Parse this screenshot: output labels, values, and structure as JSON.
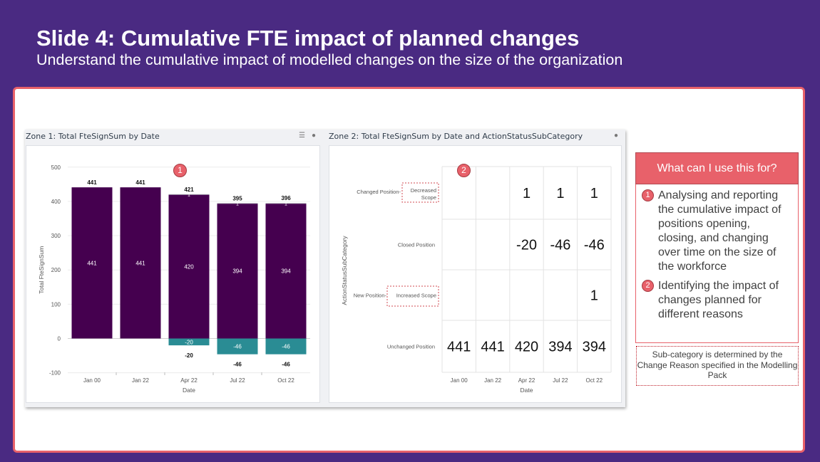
{
  "slide": {
    "title": "Slide 4: Cumulative FTE impact of planned changes",
    "subtitle": "Understand the cumulative impact of modelled changes on the size of the organization"
  },
  "zone1": {
    "title": "Zone 1: Total FteSignSum by Date",
    "badge": "1"
  },
  "zone2": {
    "title": "Zone 2: Total FteSignSum by Date and ActionStatusSubCategory",
    "badge": "2"
  },
  "info_panel": {
    "header": "What can I use this for?",
    "items": [
      {
        "badge": "1",
        "text": "Analysing and reporting the cumulative impact of positions opening, closing, and changing over time on the size of the workforce"
      },
      {
        "badge": "2",
        "text": "Identifying the impact of changes planned for different reasons"
      }
    ],
    "note": "Sub-category is determined by the Change Reason specified in the Modelling Pack"
  },
  "colors": {
    "background": "#4a2a82",
    "accent": "#e8616a",
    "bar_primary": "#45004f",
    "bar_secondary": "#2a8c94",
    "bar_cap": "#a7a3b0"
  },
  "chart_data": [
    {
      "type": "bar",
      "stacked": true,
      "categories": [
        "Jan 00",
        "Jan 22",
        "Apr 22",
        "Jul 22",
        "Oct 22"
      ],
      "series": [
        {
          "values": [
            441,
            441,
            420,
            394,
            394
          ],
          "color": "#45004f"
        },
        {
          "values": [
            0,
            0,
            1,
            1,
            1
          ],
          "color": "#a7a3b0"
        },
        {
          "values": [
            0,
            0,
            -20,
            -46,
            -46
          ],
          "color": "#2a8c94"
        }
      ],
      "totals_positive": [
        441,
        441,
        421,
        395,
        396
      ],
      "totals_negative": [
        null,
        null,
        -20,
        -46,
        -46
      ],
      "xlabel": "Date",
      "ylabel": "Total FteSignSum",
      "ylim": [
        -100,
        500
      ],
      "yticks": [
        -100,
        0,
        100,
        200,
        300,
        400,
        500
      ],
      "grid": true
    },
    {
      "type": "table",
      "columns": [
        "Jan 00",
        "Jan 22",
        "Apr 22",
        "Jul 22",
        "Oct 22"
      ],
      "rows": [
        {
          "label": "Changed Position",
          "sublabel": "Decreased Scope",
          "values": [
            null,
            null,
            1,
            1,
            1
          ]
        },
        {
          "label": "Closed Position",
          "sublabel": "",
          "values": [
            null,
            null,
            -20,
            -46,
            -46
          ]
        },
        {
          "label": "New Position",
          "sublabel": "Increased Scope",
          "values": [
            null,
            null,
            null,
            null,
            1
          ]
        },
        {
          "label": "Unchanged Position",
          "sublabel": "",
          "values": [
            441,
            441,
            420,
            394,
            394
          ]
        }
      ],
      "xlabel": "Date",
      "ylabel": "ActionStatusSubCategory"
    }
  ]
}
